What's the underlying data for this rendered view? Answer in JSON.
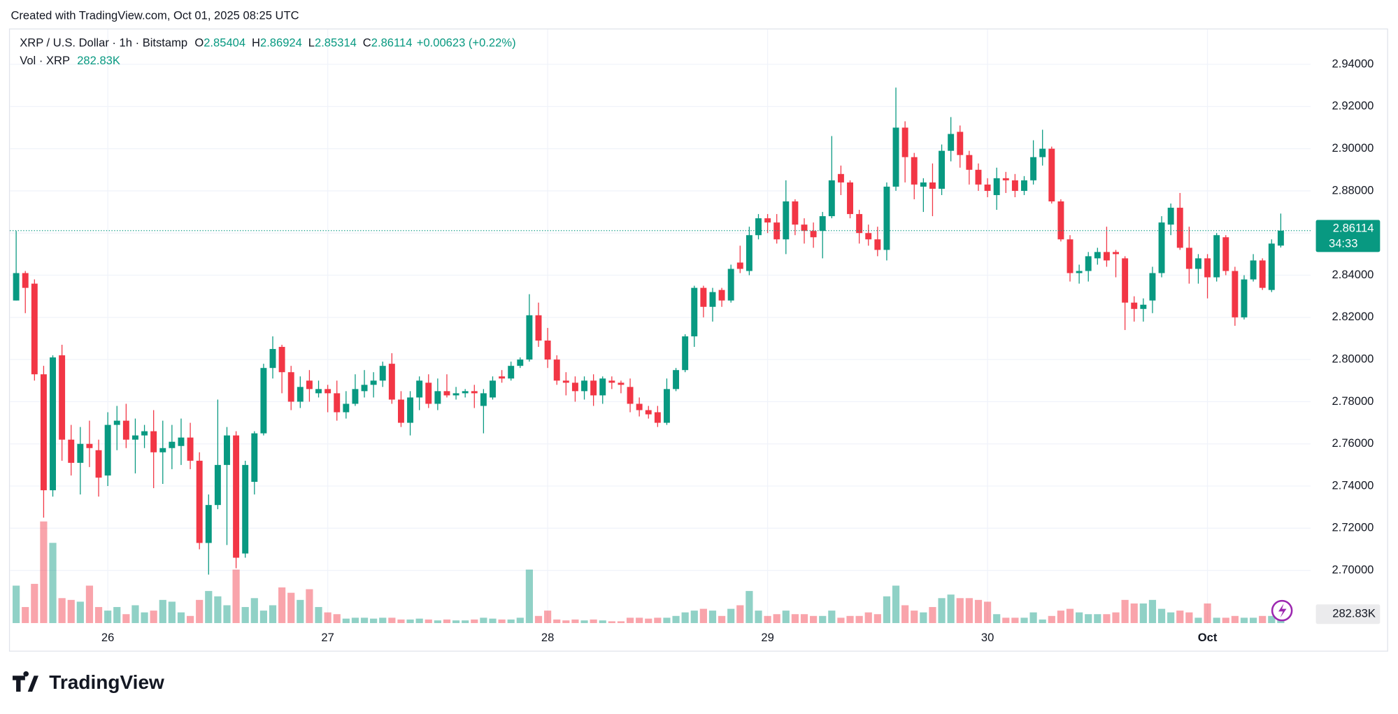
{
  "header": {
    "text": "Created with TradingView.com, Oct 01, 2025 08:25 UTC"
  },
  "footer": {
    "logo": "TradingView"
  },
  "chart_data": {
    "type": "candlestick",
    "title": "XRP / U.S. Dollar · 1h · Bitstamp",
    "ohlc_labels": [
      "O",
      "H",
      "L",
      "C"
    ],
    "change": "+0.00623 (+0.22%)",
    "countdown": "34:33",
    "up_color": "#089981",
    "down_color": "#f23645",
    "grid": true,
    "ylim": [
      2.675,
      2.957
    ],
    "yticks": [
      {
        "value": 2.7,
        "label": "2.70000"
      },
      {
        "value": 2.72,
        "label": "2.72000"
      },
      {
        "value": 2.74,
        "label": "2.74000"
      },
      {
        "value": 2.76,
        "label": "2.76000"
      },
      {
        "value": 2.78,
        "label": "2.78000"
      },
      {
        "value": 2.8,
        "label": "2.80000"
      },
      {
        "value": 2.82,
        "label": "2.82000"
      },
      {
        "value": 2.84,
        "label": "2.84000"
      },
      {
        "value": 2.86,
        "label": "2.86000"
      },
      {
        "value": 2.88,
        "label": "2.88000"
      },
      {
        "value": 2.9,
        "label": "2.90000"
      },
      {
        "value": 2.92,
        "label": "2.92000"
      },
      {
        "value": 2.94,
        "label": "2.94000"
      }
    ],
    "categories": [
      null,
      null,
      null,
      null,
      null,
      null,
      null,
      null,
      null,
      null,
      "26",
      null,
      null,
      null,
      null,
      null,
      null,
      null,
      null,
      null,
      null,
      null,
      null,
      null,
      null,
      null,
      null,
      null,
      null,
      null,
      null,
      null,
      null,
      null,
      "27",
      null,
      null,
      null,
      null,
      null,
      null,
      null,
      null,
      null,
      null,
      null,
      null,
      null,
      null,
      null,
      null,
      null,
      null,
      null,
      null,
      null,
      null,
      null,
      "28",
      null,
      null,
      null,
      null,
      null,
      null,
      null,
      null,
      null,
      null,
      null,
      null,
      null,
      null,
      null,
      null,
      null,
      null,
      null,
      null,
      null,
      null,
      null,
      "29",
      null,
      null,
      null,
      null,
      null,
      null,
      null,
      null,
      null,
      null,
      null,
      null,
      null,
      null,
      null,
      null,
      null,
      null,
      null,
      null,
      null,
      null,
      null,
      "30",
      null,
      null,
      null,
      null,
      null,
      null,
      null,
      null,
      null,
      null,
      null,
      null,
      null,
      null,
      null,
      null,
      null,
      null,
      null,
      null,
      null,
      null,
      null,
      "Oct",
      null,
      null,
      null,
      null,
      null,
      null,
      null,
      null
    ],
    "open": [
      2.828,
      2.841,
      2.836,
      2.793,
      2.738,
      2.802,
      2.762,
      2.751,
      2.76,
      2.757,
      2.745,
      2.769,
      2.771,
      2.762,
      2.764,
      2.766,
      2.756,
      2.758,
      2.759,
      2.763,
      2.752,
      2.713,
      2.731,
      2.75,
      2.764,
      2.708,
      2.742,
      2.765,
      2.796,
      2.806,
      2.794,
      2.78,
      2.79,
      2.784,
      2.786,
      2.784,
      2.775,
      2.779,
      2.785,
      2.788,
      2.79,
      2.798,
      2.781,
      2.77,
      2.782,
      2.789,
      2.779,
      2.785,
      2.783,
      2.784,
      2.785,
      2.778,
      2.782,
      2.792,
      2.791,
      2.797,
      2.8,
      2.821,
      2.809,
      2.8,
      2.79,
      2.789,
      2.785,
      2.79,
      2.783,
      2.79,
      2.789,
      2.787,
      2.779,
      2.776,
      2.775,
      2.77,
      2.786,
      2.795,
      2.811,
      2.834,
      2.825,
      2.833,
      2.828,
      2.846,
      2.842,
      2.859,
      2.867,
      2.865,
      2.857,
      2.875,
      2.864,
      2.861,
      2.861,
      2.868,
      2.888,
      2.884,
      2.869,
      2.86,
      2.857,
      2.852,
      2.882,
      2.91,
      2.896,
      2.882,
      2.884,
      2.881,
      2.899,
      2.908,
      2.897,
      2.89,
      2.883,
      2.878,
      2.886,
      2.885,
      2.88,
      2.885,
      2.896,
      2.9,
      2.875,
      2.857,
      2.841,
      2.842,
      2.848,
      2.851,
      2.851,
      2.848,
      2.827,
      2.824,
      2.828,
      2.841,
      2.864,
      2.872,
      2.853,
      2.843,
      2.848,
      2.839,
      2.858,
      2.842,
      2.82,
      2.838,
      2.847,
      2.833,
      2.85404
    ],
    "high": [
      2.861,
      2.842,
      2.838,
      2.797,
      2.802,
      2.807,
      2.769,
      2.768,
      2.771,
      2.762,
      2.775,
      2.778,
      2.779,
      2.772,
      2.769,
      2.776,
      2.771,
      2.769,
      2.772,
      2.77,
      2.756,
      2.736,
      2.781,
      2.768,
      2.766,
      2.752,
      2.766,
      2.798,
      2.811,
      2.807,
      2.797,
      2.792,
      2.795,
      2.79,
      2.788,
      2.79,
      2.785,
      2.793,
      2.795,
      2.794,
      2.799,
      2.803,
      2.785,
      2.785,
      2.792,
      2.793,
      2.791,
      2.793,
      2.787,
      2.786,
      2.788,
      2.786,
      2.792,
      2.795,
      2.799,
      2.801,
      2.831,
      2.827,
      2.815,
      2.802,
      2.794,
      2.792,
      2.792,
      2.793,
      2.792,
      2.792,
      2.79,
      2.791,
      2.782,
      2.778,
      2.778,
      2.791,
      2.796,
      2.812,
      2.835,
      2.835,
      2.834,
      2.834,
      2.845,
      2.854,
      2.863,
      2.869,
      2.869,
      2.869,
      2.885,
      2.876,
      2.867,
      2.865,
      2.87,
      2.906,
      2.892,
      2.885,
      2.871,
      2.864,
      2.863,
      2.884,
      2.929,
      2.913,
      2.898,
      2.886,
      2.893,
      2.902,
      2.915,
      2.911,
      2.899,
      2.893,
      2.886,
      2.891,
      2.889,
      2.888,
      2.887,
      2.904,
      2.909,
      2.901,
      2.876,
      2.859,
      2.845,
      2.851,
      2.853,
      2.863,
      2.852,
      2.849,
      2.83,
      2.829,
      2.844,
      2.868,
      2.874,
      2.879,
      2.863,
      2.85,
      2.85,
      2.86,
      2.859,
      2.844,
      2.84,
      2.85,
      2.848,
      2.857,
      2.86924
    ],
    "low": [
      2.828,
      2.822,
      2.79,
      2.725,
      2.735,
      2.752,
      2.745,
      2.736,
      2.749,
      2.735,
      2.74,
      2.757,
      2.758,
      2.746,
      2.758,
      2.739,
      2.741,
      2.748,
      2.75,
      2.748,
      2.71,
      2.698,
      2.729,
      2.712,
      2.701,
      2.706,
      2.736,
      2.764,
      2.791,
      2.784,
      2.776,
      2.777,
      2.78,
      2.782,
      2.775,
      2.771,
      2.772,
      2.778,
      2.782,
      2.782,
      2.787,
      2.779,
      2.768,
      2.764,
      2.776,
      2.777,
      2.776,
      2.782,
      2.781,
      2.782,
      2.777,
      2.765,
      2.781,
      2.789,
      2.79,
      2.796,
      2.799,
      2.806,
      2.796,
      2.788,
      2.783,
      2.78,
      2.781,
      2.778,
      2.779,
      2.786,
      2.784,
      2.775,
      2.773,
      2.772,
      2.768,
      2.769,
      2.785,
      2.794,
      2.806,
      2.82,
      2.818,
      2.825,
      2.827,
      2.841,
      2.84,
      2.857,
      2.86,
      2.855,
      2.85,
      2.859,
      2.855,
      2.853,
      2.848,
      2.867,
      2.878,
      2.867,
      2.855,
      2.854,
      2.849,
      2.847,
      2.88,
      2.884,
      2.876,
      2.87,
      2.868,
      2.878,
      2.894,
      2.891,
      2.883,
      2.88,
      2.877,
      2.871,
      2.879,
      2.877,
      2.878,
      2.883,
      2.892,
      2.874,
      2.856,
      2.837,
      2.836,
      2.837,
      2.845,
      2.844,
      2.839,
      2.814,
      2.818,
      2.818,
      2.822,
      2.839,
      2.859,
      2.852,
      2.836,
      2.836,
      2.829,
      2.837,
      2.84,
      2.816,
      2.819,
      2.837,
      2.833,
      2.832,
      2.85314
    ],
    "close": [
      2.841,
      2.834,
      2.793,
      2.738,
      2.801,
      2.762,
      2.751,
      2.76,
      2.758,
      2.744,
      2.769,
      2.771,
      2.762,
      2.764,
      2.766,
      2.756,
      2.758,
      2.761,
      2.763,
      2.752,
      2.713,
      2.731,
      2.75,
      2.764,
      2.706,
      2.75,
      2.765,
      2.796,
      2.805,
      2.794,
      2.78,
      2.787,
      2.786,
      2.786,
      2.784,
      2.775,
      2.779,
      2.786,
      2.788,
      2.79,
      2.797,
      2.781,
      2.77,
      2.782,
      2.79,
      2.779,
      2.785,
      2.783,
      2.784,
      2.785,
      2.784,
      2.784,
      2.79,
      2.791,
      2.797,
      2.8,
      2.821,
      2.809,
      2.8,
      2.79,
      2.789,
      2.785,
      2.79,
      2.783,
      2.791,
      2.789,
      2.788,
      2.779,
      2.776,
      2.774,
      2.77,
      2.786,
      2.795,
      2.811,
      2.834,
      2.825,
      2.832,
      2.828,
      2.843,
      2.843,
      2.859,
      2.867,
      2.865,
      2.857,
      2.875,
      2.864,
      2.861,
      2.858,
      2.868,
      2.885,
      2.884,
      2.869,
      2.86,
      2.857,
      2.852,
      2.882,
      2.91,
      2.896,
      2.883,
      2.884,
      2.881,
      2.899,
      2.907,
      2.897,
      2.89,
      2.883,
      2.88,
      2.886,
      2.885,
      2.88,
      2.885,
      2.896,
      2.9,
      2.875,
      2.857,
      2.841,
      2.842,
      2.849,
      2.851,
      2.847,
      2.85,
      2.827,
      2.824,
      2.826,
      2.841,
      2.865,
      2.872,
      2.853,
      2.843,
      2.848,
      2.839,
      2.859,
      2.842,
      2.82,
      2.838,
      2.847,
      2.834,
      2.855,
      2.86114
    ],
    "volume": {
      "name": "Vol · XRP",
      "last_label": "282.83K",
      "values": [
        1470,
        630,
        1540,
        3990,
        3150,
        980,
        910,
        840,
        1470,
        630,
        490,
        630,
        350,
        700,
        420,
        490,
        910,
        840,
        420,
        280,
        910,
        1260,
        1050,
        700,
        2100,
        630,
        980,
        490,
        700,
        1400,
        1190,
        910,
        1330,
        630,
        420,
        350,
        175,
        210,
        210,
        175,
        210,
        210,
        140,
        140,
        175,
        140,
        105,
        140,
        105,
        105,
        140,
        210,
        175,
        140,
        140,
        210,
        2100,
        280,
        490,
        140,
        105,
        140,
        105,
        140,
        105,
        70,
        70,
        210,
        210,
        175,
        210,
        210,
        280,
        420,
        490,
        560,
        490,
        280,
        560,
        700,
        1260,
        490,
        280,
        350,
        490,
        350,
        350,
        280,
        280,
        490,
        210,
        280,
        280,
        420,
        350,
        1050,
        1470,
        700,
        490,
        420,
        630,
        980,
        1120,
        980,
        980,
        910,
        840,
        350,
        210,
        210,
        210,
        420,
        140,
        280,
        490,
        560,
        420,
        350,
        350,
        350,
        420,
        910,
        770,
        770,
        910,
        560,
        420,
        490,
        420,
        210,
        770,
        210,
        210,
        280,
        210,
        210,
        280,
        280,
        282.83
      ]
    }
  }
}
